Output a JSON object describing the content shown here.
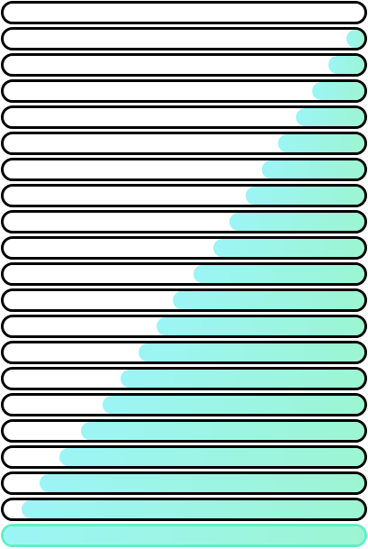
{
  "gradient": {
    "start": "#9cf5f5",
    "end": "#9cf5d2"
  },
  "colors": {
    "outline": "#000000",
    "full_outline": "#5ff0c4",
    "track": "#ffffff"
  },
  "bars": [
    {
      "fill_fraction": 0.0
    },
    {
      "fill_fraction": 0.05
    },
    {
      "fill_fraction": 0.1
    },
    {
      "fill_fraction": 0.145
    },
    {
      "fill_fraction": 0.19
    },
    {
      "fill_fraction": 0.24
    },
    {
      "fill_fraction": 0.285
    },
    {
      "fill_fraction": 0.33
    },
    {
      "fill_fraction": 0.375
    },
    {
      "fill_fraction": 0.42
    },
    {
      "fill_fraction": 0.475
    },
    {
      "fill_fraction": 0.53
    },
    {
      "fill_fraction": 0.575
    },
    {
      "fill_fraction": 0.625
    },
    {
      "fill_fraction": 0.675
    },
    {
      "fill_fraction": 0.725
    },
    {
      "fill_fraction": 0.785
    },
    {
      "fill_fraction": 0.845
    },
    {
      "fill_fraction": 0.9
    },
    {
      "fill_fraction": 0.95
    },
    {
      "fill_fraction": 1.0
    }
  ]
}
